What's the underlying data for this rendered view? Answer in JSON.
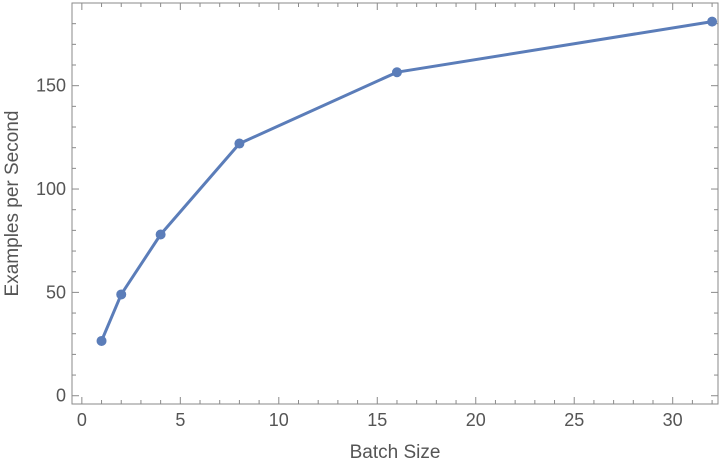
{
  "chart_data": {
    "type": "line",
    "title": "",
    "xlabel": "Batch Size",
    "ylabel": "Examples per Second",
    "xlim": [
      -0.5,
      32.3
    ],
    "ylim": [
      -4,
      190
    ],
    "xticks": [
      0,
      5,
      10,
      15,
      20,
      25,
      30
    ],
    "yticks": [
      0,
      50,
      100,
      150
    ],
    "grid": false,
    "legend": "none",
    "series": [
      {
        "x": [
          1,
          2,
          4,
          8,
          16,
          32
        ],
        "values": [
          26.5,
          49,
          78,
          122,
          156.5,
          181
        ]
      }
    ],
    "colors": {
      "line": "#5b7db9",
      "frame": "#8a8a8a",
      "text": "#555555"
    }
  }
}
